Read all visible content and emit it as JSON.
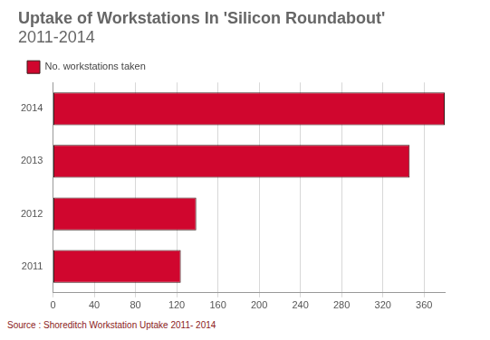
{
  "chart_data": {
    "type": "bar",
    "orientation": "horizontal",
    "title": "Uptake of Workstations In 'Silicon Roundabout'",
    "subtitle": "2011-2014",
    "source": "Source : Shoreditch Workstation Uptake 2011- 2014",
    "categories": [
      "2014",
      "2013",
      "2012",
      "2011"
    ],
    "series": [
      {
        "name": "No. workstations taken",
        "color": "#d0062e",
        "values": [
          380,
          346,
          139,
          124
        ]
      }
    ],
    "xlim": [
      0,
      380
    ],
    "xticks": [
      0,
      40,
      80,
      120,
      160,
      200,
      240,
      280,
      320,
      360
    ],
    "grid": true,
    "legend": "top-left"
  }
}
